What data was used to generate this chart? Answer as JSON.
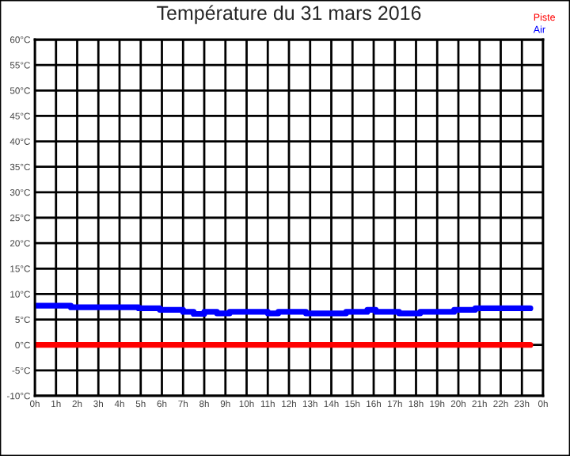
{
  "chart_data": {
    "type": "step",
    "title": "Température du 31 mars 2016",
    "xlim": [
      "2016-03-31T00:00",
      "2016-04-01T00:00"
    ],
    "ylim": [
      -10,
      60
    ],
    "xticks": [
      {
        "value": "2016-03-31T00:00",
        "label": "0h"
      },
      {
        "value": "2016-03-31T01:00",
        "label": "1h"
      },
      {
        "value": "2016-03-31T02:00",
        "label": "2h"
      },
      {
        "value": "2016-03-31T03:00",
        "label": "3h"
      },
      {
        "value": "2016-03-31T04:00",
        "label": "4h"
      },
      {
        "value": "2016-03-31T05:00",
        "label": "5h"
      },
      {
        "value": "2016-03-31T06:00",
        "label": "6h"
      },
      {
        "value": "2016-03-31T07:00",
        "label": "7h"
      },
      {
        "value": "2016-03-31T08:00",
        "label": "8h"
      },
      {
        "value": "2016-03-31T09:00",
        "label": "9h"
      },
      {
        "value": "2016-03-31T10:00",
        "label": "10h"
      },
      {
        "value": "2016-03-31T11:00",
        "label": "11h"
      },
      {
        "value": "2016-03-31T12:00",
        "label": "12h"
      },
      {
        "value": "2016-03-31T13:00",
        "label": "13h"
      },
      {
        "value": "2016-03-31T14:00",
        "label": "14h"
      },
      {
        "value": "2016-03-31T15:00",
        "label": "15h"
      },
      {
        "value": "2016-03-31T16:00",
        "label": "16h"
      },
      {
        "value": "2016-03-31T17:00",
        "label": "17h"
      },
      {
        "value": "2016-03-31T18:00",
        "label": "18h"
      },
      {
        "value": "2016-03-31T19:00",
        "label": "19h"
      },
      {
        "value": "2016-03-31T20:00",
        "label": "20h"
      },
      {
        "value": "2016-03-31T21:00",
        "label": "21h"
      },
      {
        "value": "2016-03-31T22:00",
        "label": "22h"
      },
      {
        "value": "2016-03-31T23:00",
        "label": "23h"
      },
      {
        "value": "2016-04-01T00:00",
        "label": "0h"
      }
    ],
    "yticks": [
      {
        "value": -10,
        "label": "-10°C"
      },
      {
        "value": -5,
        "label": "-5°C"
      },
      {
        "value": 0,
        "label": "0°C"
      },
      {
        "value": 5,
        "label": "5°C"
      },
      {
        "value": 10,
        "label": "10°C"
      },
      {
        "value": 15,
        "label": "15°C"
      },
      {
        "value": 20,
        "label": "20°C"
      },
      {
        "value": 25,
        "label": "25°C"
      },
      {
        "value": 30,
        "label": "30°C"
      },
      {
        "value": 35,
        "label": "35°C"
      },
      {
        "value": 40,
        "label": "40°C"
      },
      {
        "value": 45,
        "label": "45°C"
      },
      {
        "value": 50,
        "label": "50°C"
      },
      {
        "value": 55,
        "label": "55°C"
      },
      {
        "value": 60,
        "label": "60°C"
      }
    ],
    "grid": true,
    "legend": "top right",
    "series": [
      {
        "name": "Piste",
        "color": "#ff0000",
        "x": [
          "2016-03-31T00:00",
          "2016-03-31T23:24"
        ],
        "values": [
          0,
          0
        ]
      },
      {
        "name": "Air",
        "color": "#0000ff",
        "x": [
          "2016-03-31T00:00",
          "2016-03-31T01:42",
          "2016-03-31T04:54",
          "2016-03-31T05:54",
          "2016-03-31T07:00",
          "2016-03-31T07:30",
          "2016-03-31T08:00",
          "2016-03-31T08:36",
          "2016-03-31T09:12",
          "2016-03-31T11:00",
          "2016-03-31T11:30",
          "2016-03-31T12:48",
          "2016-03-31T14:42",
          "2016-03-31T15:42",
          "2016-03-31T16:06",
          "2016-03-31T17:12",
          "2016-03-31T18:12",
          "2016-03-31T19:48",
          "2016-03-31T20:48",
          "2016-03-31T23:24"
        ],
        "values": [
          7.7,
          7.4,
          7.2,
          6.9,
          6.5,
          6.1,
          6.5,
          6.2,
          6.5,
          6.2,
          6.5,
          6.2,
          6.5,
          6.9,
          6.5,
          6.2,
          6.5,
          6.9,
          7.2,
          7.2
        ]
      }
    ]
  }
}
